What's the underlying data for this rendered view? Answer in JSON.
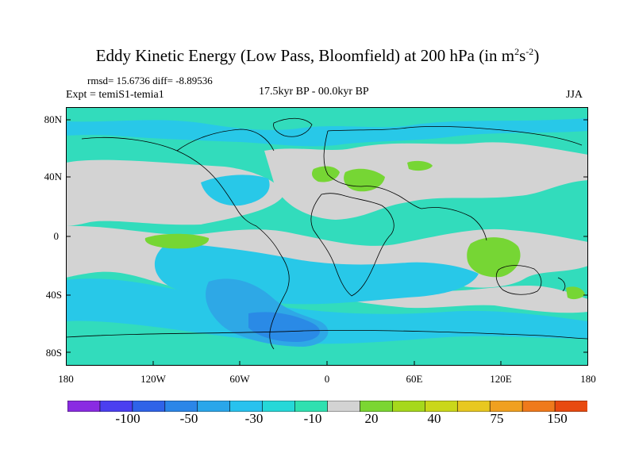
{
  "title": {
    "main": "Eddy Kinetic Energy (Low Pass, Bloomfield) at 200 hPa (in m",
    "exp1": "2",
    "mid": "s",
    "exp2": "-2",
    "close": ")"
  },
  "stats": "rmsd= 15.6736 diff= -8.89536",
  "expt": "Expt = temiS1-temia1",
  "period": "17.5kyr BP - 00.0kyr BP",
  "season": "JJA",
  "lat_labels": [
    "80N",
    "40N",
    "0",
    "40S",
    "80S"
  ],
  "lon_labels": [
    "180",
    "120W",
    "60W",
    "0",
    "60E",
    "120E",
    "180"
  ],
  "colorbar": {
    "labels": [
      "-100",
      "-50",
      "-30",
      "-10",
      "20",
      "40",
      "75",
      "150"
    ],
    "colors": [
      "#8a2be2",
      "#4b3ff0",
      "#2f63e8",
      "#2b86e8",
      "#2aa6ea",
      "#28c2ee",
      "#25d8d8",
      "#2fe0b0",
      "#d3d3d3",
      "#7bd632",
      "#a6d81c",
      "#cad71a",
      "#e8c820",
      "#f0a020",
      "#ef7a1c",
      "#e84a10"
    ]
  },
  "palette": {
    "neutral": "#d3d3d3",
    "teal": "#32dcbc",
    "cyan": "#28c8e8",
    "blue": "#2ea8e6",
    "deep_blue": "#2a8ae6",
    "green": "#76d634"
  }
}
